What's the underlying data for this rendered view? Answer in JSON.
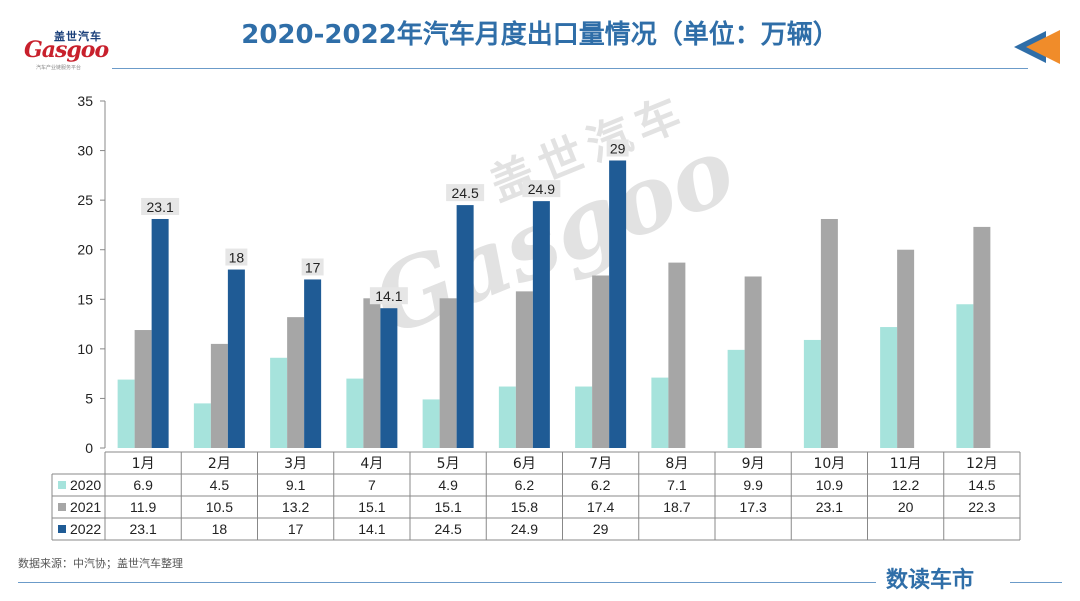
{
  "title": "2020-2022年汽车月度出口量情况（单位：万辆）",
  "logo": {
    "cn": "盖世汽车",
    "en": "Gasgoo",
    "sub": "汽车产业链服务平台"
  },
  "watermark": {
    "cn": "盖世汽车",
    "en": "Gasgoo"
  },
  "source": "数据来源：中汽协；盖世汽车整理",
  "brand": "数读车市",
  "colors": {
    "2020": "#a6e3dc",
    "2021": "#a6a6a6",
    "2022": "#1f5b95",
    "title": "#2f6ea8"
  },
  "chart_data": {
    "type": "bar",
    "categories": [
      "1月",
      "2月",
      "3月",
      "4月",
      "5月",
      "6月",
      "7月",
      "8月",
      "9月",
      "10月",
      "11月",
      "12月"
    ],
    "series": [
      {
        "name": "2020",
        "values": [
          6.9,
          4.5,
          9.1,
          7,
          4.9,
          6.2,
          6.2,
          7.1,
          9.9,
          10.9,
          12.2,
          14.5
        ]
      },
      {
        "name": "2021",
        "values": [
          11.9,
          10.5,
          13.2,
          15.1,
          15.1,
          15.8,
          17.4,
          18.7,
          17.3,
          23.1,
          20,
          22.3
        ]
      },
      {
        "name": "2022",
        "values": [
          23.1,
          18,
          17,
          14.1,
          24.5,
          24.9,
          29,
          null,
          null,
          null,
          null,
          null
        ]
      }
    ],
    "ylim": [
      0,
      35
    ],
    "yticks": [
      0,
      5,
      10,
      15,
      20,
      25,
      30,
      35
    ],
    "data_labels_series": "2022",
    "legend": "data-table"
  }
}
